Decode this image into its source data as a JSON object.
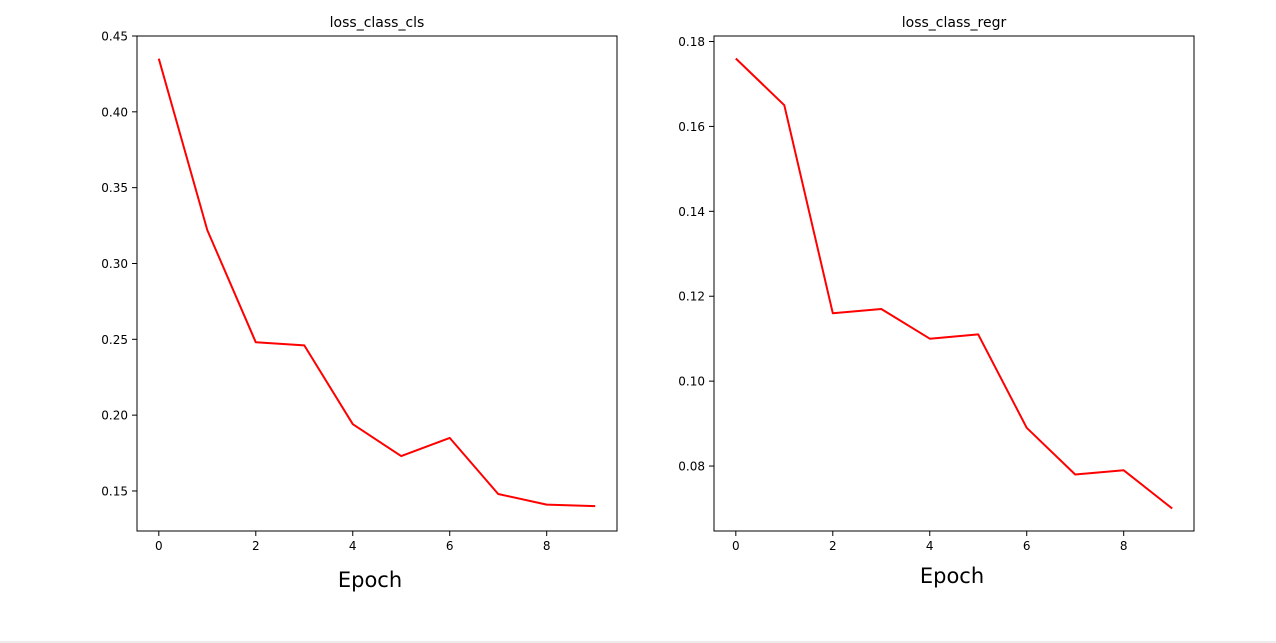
{
  "chart_data": [
    {
      "type": "line",
      "title": "loss_class_cls",
      "xlabel": "Epoch",
      "ylabel": "",
      "x": [
        0,
        1,
        2,
        3,
        4,
        5,
        6,
        7,
        8,
        9
      ],
      "series": [
        {
          "color": "#ff0000",
          "values": [
            0.435,
            0.322,
            0.248,
            0.246,
            0.194,
            0.173,
            0.185,
            0.148,
            0.141,
            0.14
          ]
        }
      ],
      "xlim": [
        -0.45,
        9.45
      ],
      "ylim": [
        0.1236,
        0.45
      ],
      "xticks": [
        0,
        2,
        4,
        6,
        8
      ],
      "xtick_labels": [
        "0",
        "2",
        "4",
        "6",
        "8"
      ],
      "yticks": [
        0.15,
        0.2,
        0.25,
        0.3,
        0.35,
        0.4,
        0.45
      ],
      "ytick_labels": [
        "0.15",
        "0.20",
        "0.25",
        "0.30",
        "0.35",
        "0.40",
        "0.45"
      ],
      "grid": false,
      "legend": "none"
    },
    {
      "type": "line",
      "title": "loss_class_regr",
      "xlabel": "Epoch",
      "ylabel": "",
      "x": [
        0,
        1,
        2,
        3,
        4,
        5,
        6,
        7,
        8,
        9
      ],
      "series": [
        {
          "color": "#ff0000",
          "values": [
            0.176,
            0.165,
            0.116,
            0.117,
            0.11,
            0.111,
            0.089,
            0.078,
            0.079,
            0.07
          ]
        }
      ],
      "xlim": [
        -0.45,
        9.45
      ],
      "ylim": [
        0.0647,
        0.1813
      ],
      "xticks": [
        0,
        2,
        4,
        6,
        8
      ],
      "xtick_labels": [
        "0",
        "2",
        "4",
        "6",
        "8"
      ],
      "yticks": [
        0.08,
        0.1,
        0.12,
        0.14,
        0.16,
        0.18
      ],
      "ytick_labels": [
        "0.08",
        "0.10",
        "0.12",
        "0.14",
        "0.16",
        "0.18"
      ],
      "grid": false,
      "legend": "none"
    }
  ]
}
